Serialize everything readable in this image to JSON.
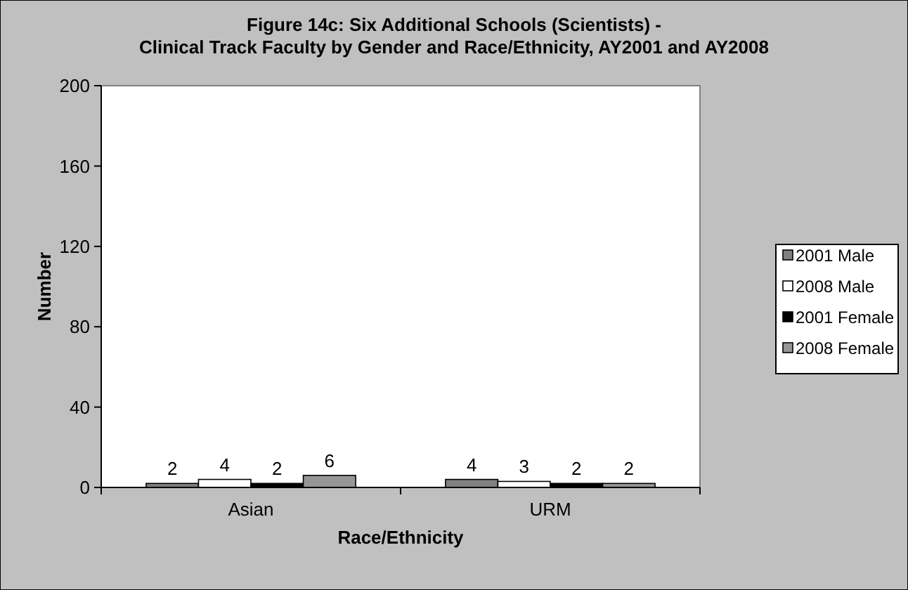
{
  "chart_data": {
    "type": "bar",
    "title": "Figure 14c: Six Additional Schools (Scientists) - Clinical Track Faculty by Gender and Race/Ethnicity, AY2001 and AY2008",
    "xlabel": "Race/Ethnicity",
    "ylabel": "Number",
    "categories": [
      "Asian",
      "URM"
    ],
    "series": [
      {
        "name": "2001 Male",
        "color": "#808080",
        "values": [
          2,
          4
        ]
      },
      {
        "name": "2008 Male",
        "color": "#ffffff",
        "values": [
          4,
          3
        ]
      },
      {
        "name": "2001 Female",
        "color": "#000000",
        "values": [
          2,
          2
        ]
      },
      {
        "name": "2008 Female",
        "color": "#969696",
        "values": [
          6,
          2
        ]
      }
    ],
    "ylim": [
      0,
      200
    ],
    "yticks": [
      0,
      40,
      80,
      120,
      160,
      200
    ],
    "data_labels": true,
    "legend": "right",
    "grid": false
  }
}
